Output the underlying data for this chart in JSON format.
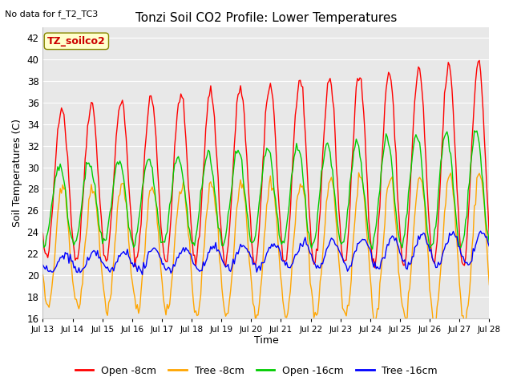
{
  "title": "Tonzi Soil CO2 Profile: Lower Temperatures",
  "subtitle": "No data for f_T2_TC3",
  "ylabel": "Soil Temperatures (C)",
  "xlabel": "Time",
  "box_label": "TZ_soilco2",
  "ylim": [
    16,
    43
  ],
  "yticks": [
    16,
    18,
    20,
    22,
    24,
    26,
    28,
    30,
    32,
    34,
    36,
    38,
    40,
    42
  ],
  "xtick_labels": [
    "Jul 13",
    "Jul 14",
    "Jul 15",
    "Jul 16",
    "Jul 17",
    "Jul 18",
    "Jul 19",
    "Jul 20",
    "Jul 21",
    "Jul 22",
    "Jul 23",
    "Jul 24",
    "Jul 25",
    "Jul 26",
    "Jul 27",
    "Jul 28"
  ],
  "colors": {
    "open_8cm": "#ff0000",
    "tree_8cm": "#ffa500",
    "open_16cm": "#00cc00",
    "tree_16cm": "#0000ff"
  },
  "legend_entries": [
    "Open -8cm",
    "Tree -8cm",
    "Open -16cm",
    "Tree -16cm"
  ],
  "plot_bg": "#e8e8e8",
  "grid_color": "#ffffff",
  "n_days": 15,
  "n_per_day": 24
}
